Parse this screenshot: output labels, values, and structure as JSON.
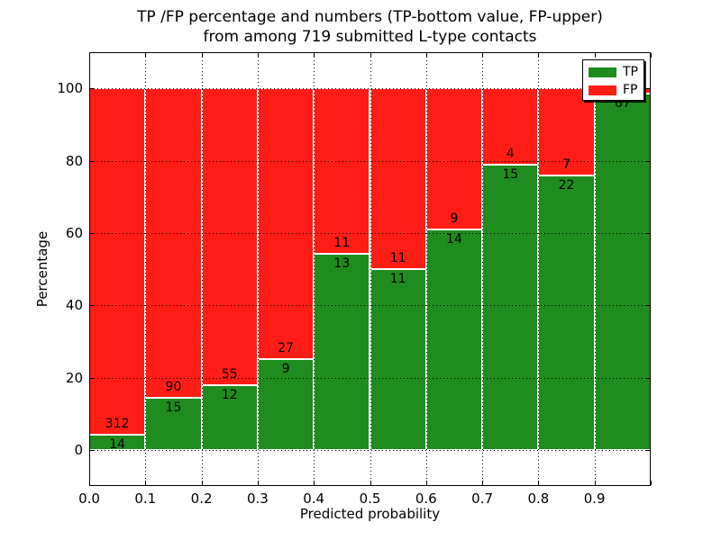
{
  "figure": {
    "title_line1": "TP /FP percentage and numbers (TP-bottom value, FP-upper)",
    "title_line2": "from among 719 submitted L-type contacts",
    "xlabel": "Predicted probability",
    "ylabel": "Percentage",
    "background_color": "#ffffff"
  },
  "legend": {
    "position": "upper right",
    "items": [
      {
        "label": "TP",
        "color": "#1e8c1e"
      },
      {
        "label": "FP",
        "color": "#ff1d15"
      }
    ]
  },
  "chart_data": {
    "type": "bar",
    "variant": "stacked-normalized-percent",
    "title": "TP /FP percentage and numbers (TP-bottom value, FP-upper) from among 719 submitted L-type contacts",
    "xlabel": "Predicted probability",
    "ylabel": "Percentage",
    "total_contacts": 719,
    "categories": [
      "0.0-0.1",
      "0.1-0.2",
      "0.2-0.3",
      "0.3-0.4",
      "0.4-0.5",
      "0.5-0.6",
      "0.6-0.7",
      "0.7-0.8",
      "0.8-0.9",
      "0.9-1.0"
    ],
    "bin_start": [
      0.0,
      0.1,
      0.2,
      0.3,
      0.4,
      0.5,
      0.6,
      0.7,
      0.8,
      0.9
    ],
    "bin_width": 0.1,
    "series": [
      {
        "name": "TP",
        "color": "#1e8c1e",
        "counts": [
          14,
          15,
          12,
          9,
          13,
          11,
          14,
          15,
          22,
          67
        ]
      },
      {
        "name": "FP",
        "color": "#ff1d15",
        "counts": [
          312,
          90,
          55,
          27,
          11,
          11,
          9,
          4,
          7,
          1
        ]
      }
    ],
    "tp_percent_of_bin": [
      4.3,
      14.3,
      17.9,
      25.0,
      54.2,
      50.0,
      60.9,
      78.9,
      75.9,
      98.5
    ],
    "tp_count_label_visible": [
      true,
      true,
      true,
      true,
      true,
      true,
      true,
      true,
      true,
      true
    ],
    "fp_count_label_visible": [
      true,
      true,
      true,
      true,
      true,
      true,
      true,
      true,
      true,
      false
    ],
    "xtick_labels": [
      "0.0",
      "0.1",
      "0.2",
      "0.3",
      "0.4",
      "0.5",
      "0.6",
      "0.7",
      "0.8",
      "0.9"
    ],
    "ytick_labels": [
      "0",
      "20",
      "40",
      "60",
      "80",
      "100"
    ],
    "ytick_values": [
      0,
      20,
      40,
      60,
      80,
      100
    ],
    "xlim": [
      0.0,
      1.0
    ],
    "ylim": [
      -10,
      110
    ],
    "grid": {
      "style": "dotted",
      "color": "#000000",
      "on": true
    },
    "bar_edge_color": "#ffffff",
    "legend_position": "upper right"
  }
}
